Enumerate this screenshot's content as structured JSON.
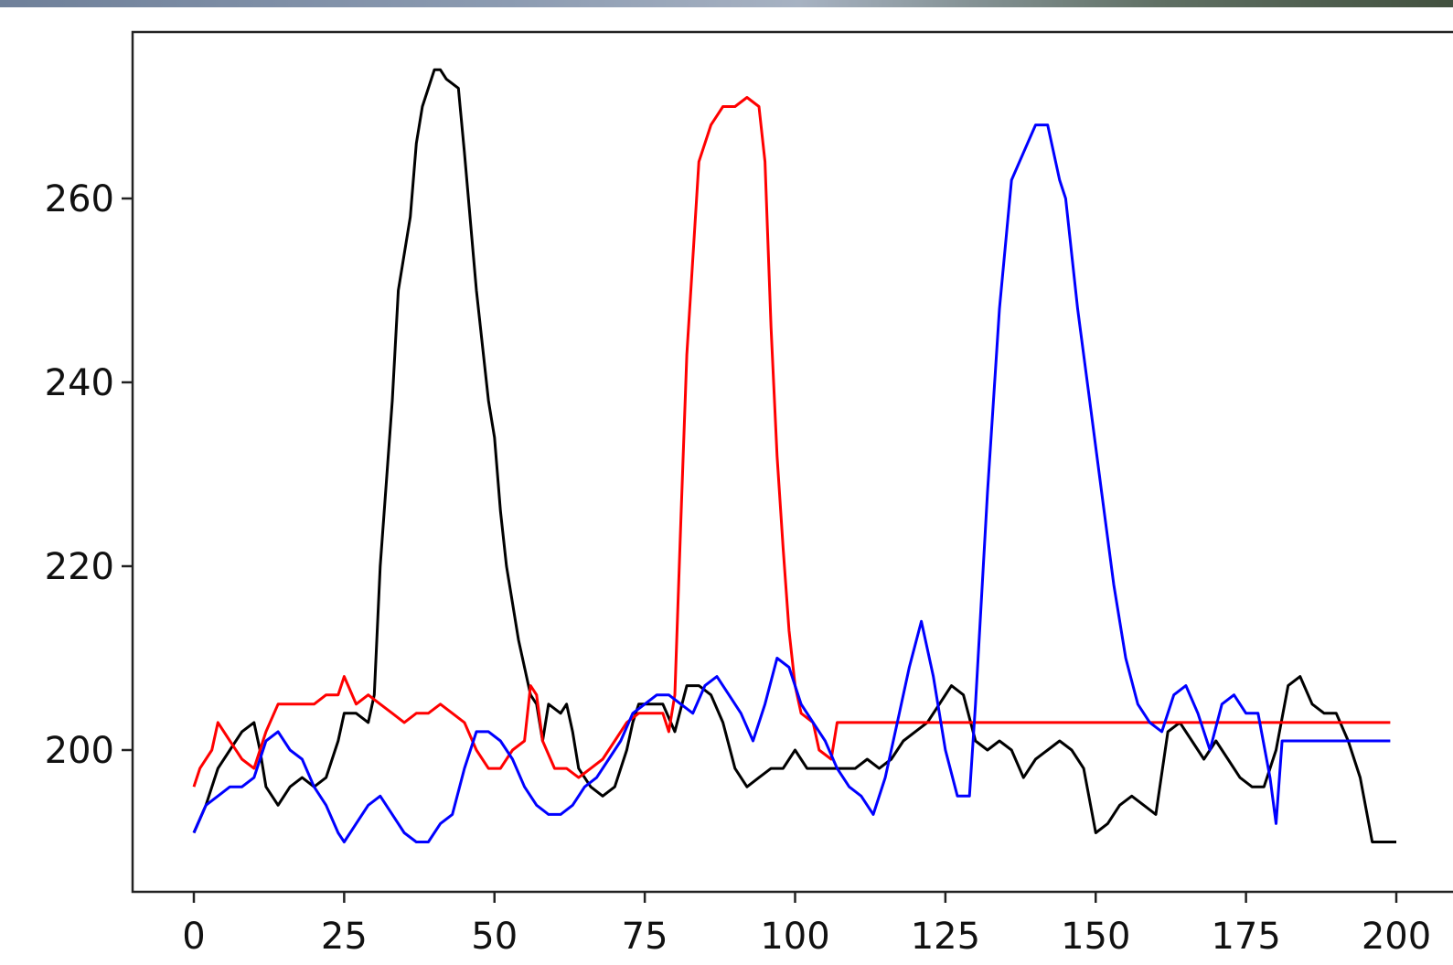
{
  "chart_data": {
    "type": "line",
    "title": "",
    "xlabel": "",
    "ylabel": "",
    "xlim": [
      -10,
      205
    ],
    "ylim": [
      184,
      278
    ],
    "x_ticks": [
      0,
      25,
      50,
      75,
      100,
      125,
      150,
      175,
      200
    ],
    "y_ticks": [
      200,
      220,
      240,
      260
    ],
    "grid": false,
    "legend": "none",
    "series": [
      {
        "color": "#000000",
        "points": [
          [
            0,
            191
          ],
          [
            2,
            194
          ],
          [
            4,
            198
          ],
          [
            6,
            200
          ],
          [
            8,
            202
          ],
          [
            10,
            203
          ],
          [
            11,
            200
          ],
          [
            12,
            196
          ],
          [
            14,
            194
          ],
          [
            16,
            196
          ],
          [
            18,
            197
          ],
          [
            20,
            196
          ],
          [
            22,
            197
          ],
          [
            24,
            201
          ],
          [
            25,
            204
          ],
          [
            27,
            204
          ],
          [
            29,
            203
          ],
          [
            30,
            206
          ],
          [
            31,
            220
          ],
          [
            33,
            238
          ],
          [
            34,
            250
          ],
          [
            36,
            258
          ],
          [
            37,
            266
          ],
          [
            38,
            270
          ],
          [
            40,
            274
          ],
          [
            41,
            274
          ],
          [
            42,
            273
          ],
          [
            44,
            272
          ],
          [
            45,
            265
          ],
          [
            47,
            250
          ],
          [
            49,
            238
          ],
          [
            50,
            234
          ],
          [
            51,
            226
          ],
          [
            52,
            220
          ],
          [
            54,
            212
          ],
          [
            56,
            206
          ],
          [
            57,
            205
          ],
          [
            58,
            201
          ],
          [
            59,
            205
          ],
          [
            61,
            204
          ],
          [
            62,
            205
          ],
          [
            63,
            202
          ],
          [
            64,
            198
          ],
          [
            66,
            196
          ],
          [
            68,
            195
          ],
          [
            70,
            196
          ],
          [
            72,
            200
          ],
          [
            73,
            203
          ],
          [
            74,
            205
          ],
          [
            76,
            205
          ],
          [
            78,
            205
          ],
          [
            80,
            202
          ],
          [
            82,
            207
          ],
          [
            84,
            207
          ],
          [
            86,
            206
          ],
          [
            88,
            203
          ],
          [
            90,
            198
          ],
          [
            92,
            196
          ],
          [
            94,
            197
          ],
          [
            96,
            198
          ],
          [
            98,
            198
          ],
          [
            100,
            200
          ],
          [
            102,
            198
          ],
          [
            104,
            198
          ],
          [
            106,
            198
          ],
          [
            108,
            198
          ],
          [
            110,
            198
          ],
          [
            112,
            199
          ],
          [
            114,
            198
          ],
          [
            116,
            199
          ],
          [
            118,
            201
          ],
          [
            120,
            202
          ],
          [
            122,
            203
          ],
          [
            124,
            205
          ],
          [
            126,
            207
          ],
          [
            128,
            206
          ],
          [
            130,
            201
          ],
          [
            132,
            200
          ],
          [
            134,
            201
          ],
          [
            136,
            200
          ],
          [
            138,
            197
          ],
          [
            140,
            199
          ],
          [
            142,
            200
          ],
          [
            144,
            201
          ],
          [
            146,
            200
          ],
          [
            148,
            198
          ],
          [
            150,
            191
          ],
          [
            152,
            192
          ],
          [
            154,
            194
          ],
          [
            156,
            195
          ],
          [
            158,
            194
          ],
          [
            160,
            193
          ],
          [
            162,
            202
          ],
          [
            164,
            203
          ],
          [
            166,
            201
          ],
          [
            168,
            199
          ],
          [
            170,
            201
          ],
          [
            172,
            199
          ],
          [
            174,
            197
          ],
          [
            176,
            196
          ],
          [
            178,
            196
          ],
          [
            180,
            200
          ],
          [
            182,
            207
          ],
          [
            184,
            208
          ],
          [
            186,
            205
          ],
          [
            188,
            204
          ],
          [
            190,
            204
          ],
          [
            192,
            201
          ],
          [
            194,
            197
          ],
          [
            196,
            190
          ],
          [
            198,
            190
          ],
          [
            200,
            190
          ]
        ]
      },
      {
        "color": "#ff0000",
        "points": [
          [
            0,
            196
          ],
          [
            1,
            198
          ],
          [
            3,
            200
          ],
          [
            4,
            203
          ],
          [
            6,
            201
          ],
          [
            8,
            199
          ],
          [
            10,
            198
          ],
          [
            12,
            202
          ],
          [
            14,
            205
          ],
          [
            16,
            205
          ],
          [
            18,
            205
          ],
          [
            20,
            205
          ],
          [
            22,
            206
          ],
          [
            24,
            206
          ],
          [
            25,
            208
          ],
          [
            27,
            205
          ],
          [
            29,
            206
          ],
          [
            31,
            205
          ],
          [
            33,
            204
          ],
          [
            35,
            203
          ],
          [
            37,
            204
          ],
          [
            39,
            204
          ],
          [
            41,
            205
          ],
          [
            43,
            204
          ],
          [
            45,
            203
          ],
          [
            47,
            200
          ],
          [
            49,
            198
          ],
          [
            51,
            198
          ],
          [
            53,
            200
          ],
          [
            55,
            201
          ],
          [
            56,
            207
          ],
          [
            57,
            206
          ],
          [
            58,
            201
          ],
          [
            60,
            198
          ],
          [
            62,
            198
          ],
          [
            64,
            197
          ],
          [
            66,
            198
          ],
          [
            68,
            199
          ],
          [
            70,
            201
          ],
          [
            72,
            203
          ],
          [
            74,
            204
          ],
          [
            76,
            204
          ],
          [
            78,
            204
          ],
          [
            79,
            202
          ],
          [
            80,
            206
          ],
          [
            81,
            225
          ],
          [
            82,
            243
          ],
          [
            84,
            264
          ],
          [
            86,
            268
          ],
          [
            88,
            270
          ],
          [
            90,
            270
          ],
          [
            92,
            271
          ],
          [
            94,
            270
          ],
          [
            95,
            264
          ],
          [
            96,
            246
          ],
          [
            97,
            232
          ],
          [
            98,
            222
          ],
          [
            99,
            213
          ],
          [
            100,
            207
          ],
          [
            101,
            204
          ],
          [
            103,
            203
          ],
          [
            104,
            200
          ],
          [
            106,
            199
          ],
          [
            107,
            203
          ],
          [
            120,
            203
          ],
          [
            140,
            203
          ],
          [
            160,
            203
          ],
          [
            180,
            203
          ],
          [
            199,
            203
          ]
        ]
      },
      {
        "color": "#0000ff",
        "points": [
          [
            0,
            191
          ],
          [
            2,
            194
          ],
          [
            4,
            195
          ],
          [
            6,
            196
          ],
          [
            8,
            196
          ],
          [
            10,
            197
          ],
          [
            12,
            201
          ],
          [
            14,
            202
          ],
          [
            16,
            200
          ],
          [
            18,
            199
          ],
          [
            20,
            196
          ],
          [
            22,
            194
          ],
          [
            24,
            191
          ],
          [
            25,
            190
          ],
          [
            27,
            192
          ],
          [
            29,
            194
          ],
          [
            31,
            195
          ],
          [
            33,
            193
          ],
          [
            35,
            191
          ],
          [
            37,
            190
          ],
          [
            39,
            190
          ],
          [
            41,
            192
          ],
          [
            43,
            193
          ],
          [
            45,
            198
          ],
          [
            47,
            202
          ],
          [
            49,
            202
          ],
          [
            51,
            201
          ],
          [
            53,
            199
          ],
          [
            55,
            196
          ],
          [
            57,
            194
          ],
          [
            59,
            193
          ],
          [
            61,
            193
          ],
          [
            63,
            194
          ],
          [
            65,
            196
          ],
          [
            67,
            197
          ],
          [
            69,
            199
          ],
          [
            71,
            201
          ],
          [
            73,
            204
          ],
          [
            75,
            205
          ],
          [
            77,
            206
          ],
          [
            79,
            206
          ],
          [
            81,
            205
          ],
          [
            83,
            204
          ],
          [
            85,
            207
          ],
          [
            87,
            208
          ],
          [
            89,
            206
          ],
          [
            91,
            204
          ],
          [
            93,
            201
          ],
          [
            95,
            205
          ],
          [
            97,
            210
          ],
          [
            99,
            209
          ],
          [
            101,
            205
          ],
          [
            103,
            203
          ],
          [
            105,
            201
          ],
          [
            107,
            198
          ],
          [
            109,
            196
          ],
          [
            111,
            195
          ],
          [
            113,
            193
          ],
          [
            115,
            197
          ],
          [
            117,
            203
          ],
          [
            119,
            209
          ],
          [
            121,
            214
          ],
          [
            123,
            208
          ],
          [
            125,
            200
          ],
          [
            127,
            195
          ],
          [
            129,
            195
          ],
          [
            130,
            205
          ],
          [
            132,
            228
          ],
          [
            134,
            248
          ],
          [
            136,
            262
          ],
          [
            138,
            265
          ],
          [
            140,
            268
          ],
          [
            142,
            268
          ],
          [
            144,
            262
          ],
          [
            145,
            260
          ],
          [
            147,
            248
          ],
          [
            149,
            238
          ],
          [
            151,
            228
          ],
          [
            153,
            218
          ],
          [
            155,
            210
          ],
          [
            157,
            205
          ],
          [
            159,
            203
          ],
          [
            161,
            202
          ],
          [
            163,
            206
          ],
          [
            165,
            207
          ],
          [
            167,
            204
          ],
          [
            169,
            200
          ],
          [
            171,
            205
          ],
          [
            173,
            206
          ],
          [
            175,
            204
          ],
          [
            177,
            204
          ],
          [
            179,
            197
          ],
          [
            180,
            192
          ],
          [
            181,
            201
          ],
          [
            190,
            201
          ],
          [
            199,
            201
          ]
        ]
      }
    ]
  }
}
